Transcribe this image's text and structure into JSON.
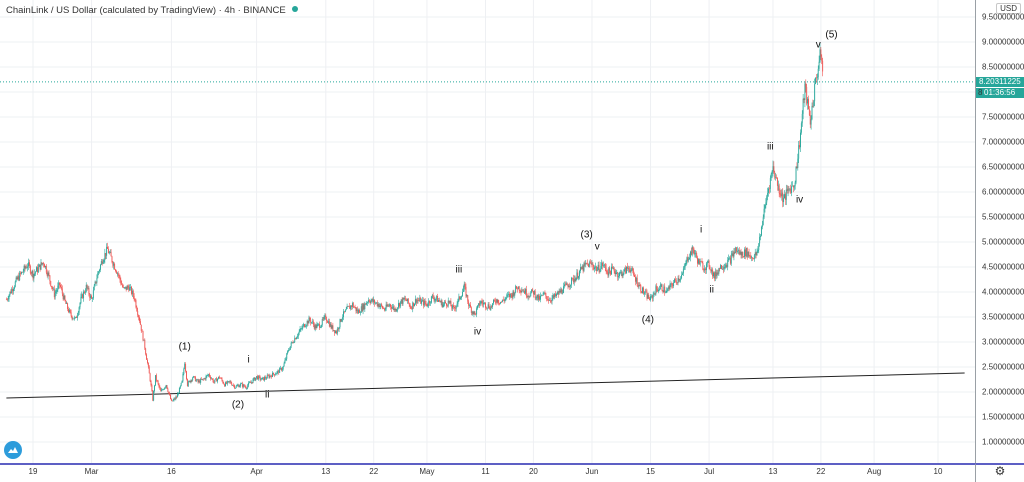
{
  "header": {
    "title": "ChainLink / US Dollar (calculated by TradingView) · 4h · BINANCE",
    "currency": "USD"
  },
  "chart_data": {
    "type": "candlestick",
    "y_range": [
      1.0,
      9.5
    ],
    "y_ticks": [
      "9.50000000",
      "9.00000000",
      "8.50000000",
      "8.00000000",
      "7.50000000",
      "7.00000000",
      "6.50000000",
      "6.00000000",
      "5.50000000",
      "5.00000000",
      "4.50000000",
      "4.00000000",
      "3.50000000",
      "3.00000000",
      "2.50000000",
      "2.00000000",
      "1.50000000",
      "1.00000000"
    ],
    "y_tick_values": [
      9.5,
      9.0,
      8.5,
      8.0,
      7.5,
      7.0,
      6.5,
      6.0,
      5.5,
      5.0,
      4.5,
      4.0,
      3.5,
      3.0,
      2.5,
      2.0,
      1.5,
      1.0
    ],
    "x_ticks": [
      "19",
      "Mar",
      "16",
      "Apr",
      "13",
      "22",
      "May",
      "11",
      "20",
      "Jun",
      "15",
      "Jul",
      "13",
      "22",
      "Aug",
      "10"
    ],
    "x_tick_days": [
      0,
      11,
      26,
      42,
      55,
      64,
      74,
      85,
      94,
      105,
      116,
      127,
      139,
      148,
      158,
      170
    ],
    "x_range_days": [
      -5,
      175
    ],
    "price_points": [
      [
        -5,
        3.85
      ],
      [
        -3,
        4.25
      ],
      [
        -1,
        4.55
      ],
      [
        0,
        4.35
      ],
      [
        2,
        4.6
      ],
      [
        3,
        4.3
      ],
      [
        4,
        3.95
      ],
      [
        5,
        4.15
      ],
      [
        6,
        3.8
      ],
      [
        7,
        3.55
      ],
      [
        8,
        3.45
      ],
      [
        9,
        3.85
      ],
      [
        10,
        4.1
      ],
      [
        11,
        3.85
      ],
      [
        12,
        4.3
      ],
      [
        13,
        4.65
      ],
      [
        14,
        4.85
      ],
      [
        15,
        4.6
      ],
      [
        16,
        4.35
      ],
      [
        17,
        4.05
      ],
      [
        18,
        4.1
      ],
      [
        19,
        3.9
      ],
      [
        20,
        3.45
      ],
      [
        21,
        2.9
      ],
      [
        22,
        2.25
      ],
      [
        22.5,
        1.85
      ],
      [
        23,
        2.3
      ],
      [
        24,
        2.0
      ],
      [
        25,
        2.15
      ],
      [
        26,
        1.8
      ],
      [
        27,
        1.9
      ],
      [
        28,
        2.2
      ],
      [
        28.5,
        2.6
      ],
      [
        29,
        2.15
      ],
      [
        30,
        2.3
      ],
      [
        31,
        2.2
      ],
      [
        32,
        2.25
      ],
      [
        33,
        2.35
      ],
      [
        34,
        2.2
      ],
      [
        35,
        2.3
      ],
      [
        36,
        2.15
      ],
      [
        37,
        2.2
      ],
      [
        38,
        2.1
      ],
      [
        39,
        2.15
      ],
      [
        40,
        2.1
      ],
      [
        41,
        2.2
      ],
      [
        42,
        2.3
      ],
      [
        43,
        2.25
      ],
      [
        44,
        2.3
      ],
      [
        45,
        2.35
      ],
      [
        46,
        2.4
      ],
      [
        47,
        2.5
      ],
      [
        48,
        2.85
      ],
      [
        49,
        3.05
      ],
      [
        50,
        3.2
      ],
      [
        51,
        3.35
      ],
      [
        52,
        3.45
      ],
      [
        53,
        3.3
      ],
      [
        54,
        3.35
      ],
      [
        55,
        3.5
      ],
      [
        56,
        3.3
      ],
      [
        57,
        3.2
      ],
      [
        58,
        3.5
      ],
      [
        59,
        3.65
      ],
      [
        60,
        3.75
      ],
      [
        61,
        3.6
      ],
      [
        62,
        3.7
      ],
      [
        63,
        3.85
      ],
      [
        64,
        3.8
      ],
      [
        65,
        3.75
      ],
      [
        66,
        3.65
      ],
      [
        67,
        3.75
      ],
      [
        68,
        3.65
      ],
      [
        69,
        3.8
      ],
      [
        70,
        3.85
      ],
      [
        71,
        3.7
      ],
      [
        72,
        3.85
      ],
      [
        73,
        3.8
      ],
      [
        74,
        3.75
      ],
      [
        75,
        3.9
      ],
      [
        76,
        3.85
      ],
      [
        77,
        3.75
      ],
      [
        78,
        3.8
      ],
      [
        79,
        3.65
      ],
      [
        80,
        3.85
      ],
      [
        81,
        4.1
      ],
      [
        82,
        3.7
      ],
      [
        83,
        3.55
      ],
      [
        84,
        3.8
      ],
      [
        85,
        3.75
      ],
      [
        86,
        3.7
      ],
      [
        87,
        3.85
      ],
      [
        88,
        3.8
      ],
      [
        89,
        3.9
      ],
      [
        90,
        3.95
      ],
      [
        91,
        4.1
      ],
      [
        92,
        4.05
      ],
      [
        93,
        3.95
      ],
      [
        94,
        4.0
      ],
      [
        95,
        3.85
      ],
      [
        96,
        3.95
      ],
      [
        97,
        3.85
      ],
      [
        98,
        3.9
      ],
      [
        99,
        4.0
      ],
      [
        100,
        4.1
      ],
      [
        101,
        4.2
      ],
      [
        102,
        4.3
      ],
      [
        103,
        4.45
      ],
      [
        104,
        4.55
      ],
      [
        105,
        4.55
      ],
      [
        106,
        4.45
      ],
      [
        107,
        4.55
      ],
      [
        108,
        4.4
      ],
      [
        109,
        4.45
      ],
      [
        110,
        4.35
      ],
      [
        111,
        4.4
      ],
      [
        112,
        4.5
      ],
      [
        113,
        4.3
      ],
      [
        114,
        4.1
      ],
      [
        115,
        3.95
      ],
      [
        116,
        3.85
      ],
      [
        117,
        4.05
      ],
      [
        118,
        4.1
      ],
      [
        119,
        4.0
      ],
      [
        120,
        4.15
      ],
      [
        121,
        4.25
      ],
      [
        122,
        4.35
      ],
      [
        123,
        4.7
      ],
      [
        124,
        4.85
      ],
      [
        125,
        4.6
      ],
      [
        126,
        4.5
      ],
      [
        127,
        4.55
      ],
      [
        128,
        4.3
      ],
      [
        129,
        4.5
      ],
      [
        130,
        4.55
      ],
      [
        131,
        4.65
      ],
      [
        132,
        4.85
      ],
      [
        133,
        4.75
      ],
      [
        134,
        4.8
      ],
      [
        135,
        4.7
      ],
      [
        136,
        4.75
      ],
      [
        137,
        5.4
      ],
      [
        138,
        6.0
      ],
      [
        139,
        6.5
      ],
      [
        140,
        6.1
      ],
      [
        141,
        5.85
      ],
      [
        142,
        6.05
      ],
      [
        143,
        6.15
      ],
      [
        144,
        7.0
      ],
      [
        145,
        8.1
      ],
      [
        146,
        7.4
      ],
      [
        147,
        8.2
      ],
      [
        148,
        8.8
      ],
      [
        148.5,
        8.2
      ]
    ],
    "trendline": {
      "start": [
        -5,
        1.88
      ],
      "end": [
        175,
        2.38
      ]
    },
    "current_price": 8.20311225,
    "current_price_label": "8.20311225",
    "countdown_label": "01:36:56",
    "axis_partial_label": "8",
    "annotations": [
      {
        "text": "(1)",
        "x": 28.5,
        "y": 2.9
      },
      {
        "text": "(2)",
        "x": 38.5,
        "y": 1.75
      },
      {
        "text": "i",
        "x": 40.5,
        "y": 2.65
      },
      {
        "text": "ii",
        "x": 44,
        "y": 1.95
      },
      {
        "text": "iii",
        "x": 80,
        "y": 4.45
      },
      {
        "text": "iv",
        "x": 83.5,
        "y": 3.2
      },
      {
        "text": "(3)",
        "x": 104,
        "y": 5.15
      },
      {
        "text": "v",
        "x": 106,
        "y": 4.9
      },
      {
        "text": "(4)",
        "x": 115.5,
        "y": 3.45
      },
      {
        "text": "i",
        "x": 125.5,
        "y": 5.25
      },
      {
        "text": "ii",
        "x": 127.5,
        "y": 4.05
      },
      {
        "text": "iii",
        "x": 138.5,
        "y": 6.9
      },
      {
        "text": "iv",
        "x": 144,
        "y": 5.85
      },
      {
        "text": "v",
        "x": 147.5,
        "y": 8.95
      },
      {
        "text": "(5)",
        "x": 150,
        "y": 9.15
      }
    ]
  }
}
